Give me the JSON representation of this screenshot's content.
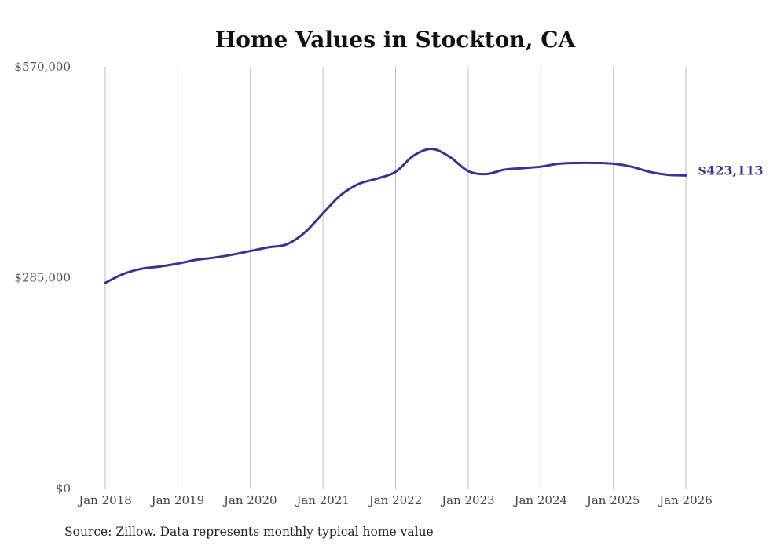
{
  "chart_data": {
    "type": "line",
    "title": "Home Values in Stockton, CA",
    "xlabel": "",
    "ylabel": "",
    "ylim": [
      0,
      570000
    ],
    "y_ticks": [
      {
        "value": 0,
        "label": "$0"
      },
      {
        "value": 285000,
        "label": "$285,000"
      },
      {
        "value": 570000,
        "label": "$570,000"
      }
    ],
    "x_ticks": [
      {
        "value": 2018,
        "label": "Jan 2018"
      },
      {
        "value": 2019,
        "label": "Jan 2019"
      },
      {
        "value": 2020,
        "label": "Jan 2020"
      },
      {
        "value": 2021,
        "label": "Jan 2021"
      },
      {
        "value": 2022,
        "label": "Jan 2022"
      },
      {
        "value": 2023,
        "label": "Jan 2023"
      },
      {
        "value": 2024,
        "label": "Jan 2024"
      },
      {
        "value": 2025,
        "label": "Jan 2025"
      },
      {
        "value": 2026,
        "label": "Jan 2026"
      }
    ],
    "xlim": [
      2018,
      2026
    ],
    "grid": "vertical",
    "series": [
      {
        "name": "Typical home value",
        "color": "#3a3393",
        "x": [
          2018.0,
          2018.25,
          2018.5,
          2018.75,
          2019.0,
          2019.25,
          2019.5,
          2019.75,
          2020.0,
          2020.25,
          2020.5,
          2020.75,
          2021.0,
          2021.25,
          2021.5,
          2021.75,
          2022.0,
          2022.25,
          2022.5,
          2022.75,
          2023.0,
          2023.25,
          2023.5,
          2023.75,
          2024.0,
          2024.25,
          2024.5,
          2024.75,
          2025.0,
          2025.25,
          2025.5,
          2025.75,
          2026.0
        ],
        "values": [
          278000,
          290000,
          297000,
          300000,
          304000,
          309000,
          312000,
          316000,
          321000,
          326000,
          330000,
          346000,
          372000,
          397000,
          412000,
          419000,
          428000,
          450000,
          459000,
          448000,
          429000,
          425000,
          431000,
          433000,
          435000,
          439000,
          440000,
          440000,
          439000,
          435000,
          428000,
          424000,
          423113
        ]
      }
    ],
    "end_label": "$423,113",
    "source": "Source: Zillow. Data represents monthly typical home value"
  }
}
